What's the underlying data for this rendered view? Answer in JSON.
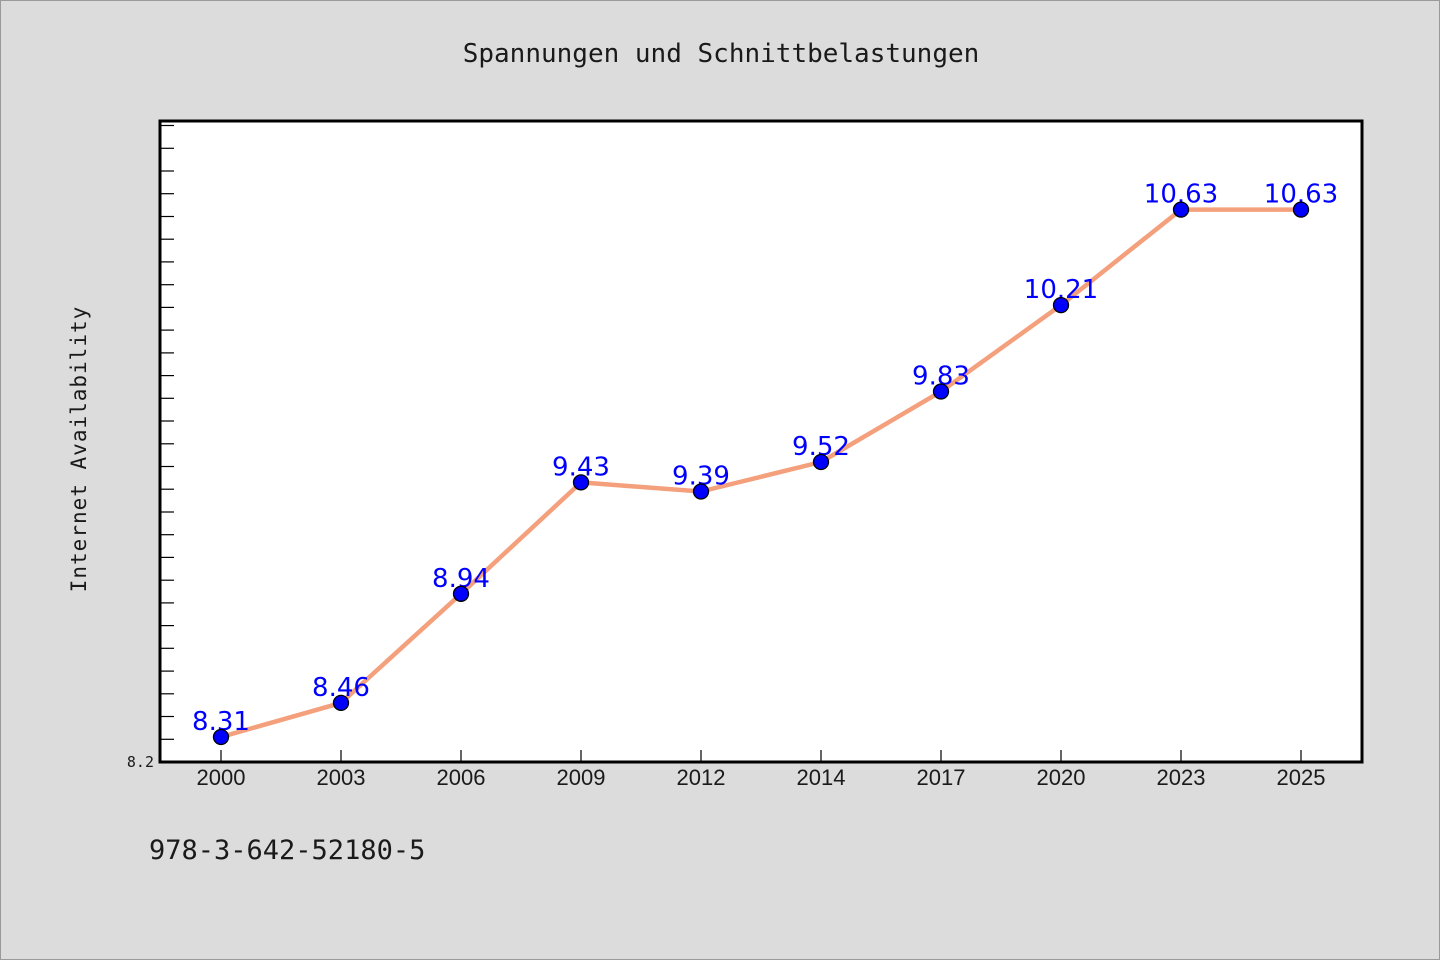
{
  "chart_data": {
    "type": "line",
    "title": "Spannungen und Schnittbelastungen",
    "xlabel": "",
    "ylabel": "Internet Availability",
    "categories": [
      "2000",
      "2003",
      "2006",
      "2009",
      "2012",
      "2014",
      "2017",
      "2020",
      "2023",
      "2025"
    ],
    "series": [
      {
        "values": [
          8.31,
          8.46,
          8.94,
          9.43,
          9.39,
          9.52,
          9.83,
          10.21,
          10.63,
          10.63
        ],
        "data_labels": [
          "8.31",
          "8.46",
          "8.94",
          "9.43",
          "9.39",
          "9.52",
          "9.83",
          "10.21",
          "10.63",
          "10.63"
        ]
      }
    ],
    "ylim": [
      8.2,
      11.02
    ],
    "y_tick_labels": [
      "8.2"
    ],
    "grid": false,
    "legend": "none",
    "colors": {
      "line": "#f4a07c",
      "marker": "#0000ff",
      "data_label": "#0000ff",
      "plot_background": "#ffffff",
      "page_background": "#dcdcdc"
    }
  },
  "footer": {
    "isbn": "978-3-642-52180-5"
  }
}
